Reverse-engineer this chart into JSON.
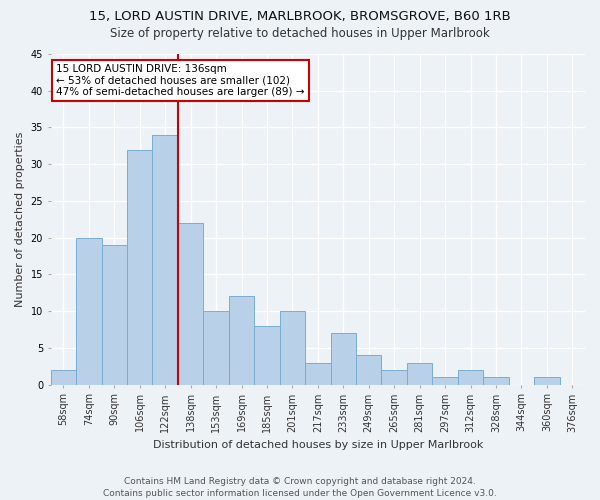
{
  "title": "15, LORD AUSTIN DRIVE, MARLBROOK, BROMSGROVE, B60 1RB",
  "subtitle": "Size of property relative to detached houses in Upper Marlbrook",
  "xlabel": "Distribution of detached houses by size in Upper Marlbrook",
  "ylabel": "Number of detached properties",
  "categories": [
    "58sqm",
    "74sqm",
    "90sqm",
    "106sqm",
    "122sqm",
    "138sqm",
    "153sqm",
    "169sqm",
    "185sqm",
    "201sqm",
    "217sqm",
    "233sqm",
    "249sqm",
    "265sqm",
    "281sqm",
    "297sqm",
    "312sqm",
    "328sqm",
    "344sqm",
    "360sqm",
    "376sqm"
  ],
  "values": [
    2,
    20,
    19,
    32,
    34,
    22,
    10,
    12,
    8,
    10,
    3,
    7,
    4,
    2,
    3,
    1,
    2,
    1,
    0,
    1,
    0
  ],
  "bar_color": "#b8d0e8",
  "bar_edge_color": "#7aadd4",
  "vline_x_index": 5,
  "vline_color": "#cc0000",
  "annotation_text": "15 LORD AUSTIN DRIVE: 136sqm\n← 53% of detached houses are smaller (102)\n47% of semi-detached houses are larger (89) →",
  "annotation_box_color": "#ffffff",
  "annotation_box_edge_color": "#cc0000",
  "ylim": [
    0,
    45
  ],
  "yticks": [
    0,
    5,
    10,
    15,
    20,
    25,
    30,
    35,
    40,
    45
  ],
  "footer": "Contains HM Land Registry data © Crown copyright and database right 2024.\nContains public sector information licensed under the Open Government Licence v3.0.",
  "bg_color": "#edf2f7",
  "grid_color": "#ffffff",
  "title_fontsize": 9.5,
  "subtitle_fontsize": 8.5,
  "label_fontsize": 8,
  "tick_fontsize": 7,
  "footer_fontsize": 6.5,
  "annot_fontsize": 7.5
}
